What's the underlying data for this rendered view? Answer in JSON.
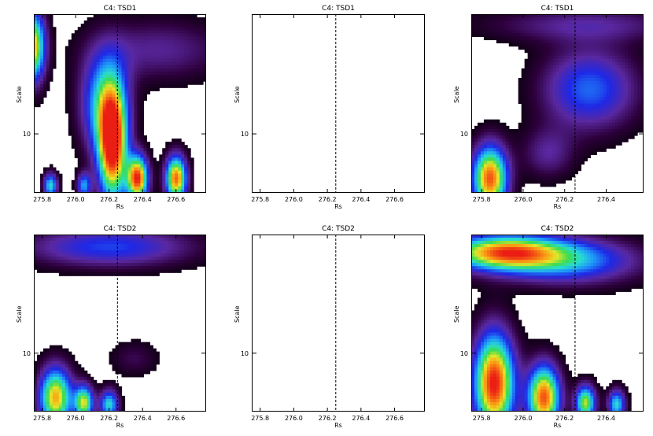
{
  "chart_data": [
    {
      "type": "heatmap",
      "title": "C4: TSD1",
      "xlabel": "Rs",
      "ylabel": "Scale",
      "xlim": [
        275.75,
        276.78
      ],
      "x_ticks": [
        275.8,
        276.0,
        276.2,
        276.4,
        276.6
      ],
      "x_tick_labels": [
        "275.8",
        "276.0",
        "276.2",
        "276.4",
        "276.6"
      ],
      "y_tick_labels": [
        "10"
      ],
      "marker_x": 276.25,
      "palette": "rainbow",
      "blobs": [
        {
          "x": 275.75,
          "y": 0.82,
          "sx": 0.05,
          "sy": 0.14,
          "a": 0.78
        },
        {
          "x": 276.22,
          "y": 0.26,
          "sx": 0.06,
          "sy": 0.22,
          "a": 0.98
        },
        {
          "x": 276.17,
          "y": 0.5,
          "sx": 0.1,
          "sy": 0.2,
          "a": 0.5
        },
        {
          "x": 276.37,
          "y": 0.08,
          "sx": 0.045,
          "sy": 0.09,
          "a": 0.96
        },
        {
          "x": 276.6,
          "y": 0.08,
          "sx": 0.045,
          "sy": 0.09,
          "a": 0.9
        },
        {
          "x": 276.5,
          "y": 0.8,
          "sx": 0.28,
          "sy": 0.12,
          "a": 0.2
        },
        {
          "x": 275.85,
          "y": 0.04,
          "sx": 0.03,
          "sy": 0.05,
          "a": 0.55
        },
        {
          "x": 276.05,
          "y": 0.04,
          "sx": 0.03,
          "sy": 0.05,
          "a": 0.45
        }
      ]
    },
    {
      "type": "heatmap",
      "title": "C4: TSD1",
      "xlabel": "Rs",
      "ylabel": "Scale",
      "xlim": [
        275.75,
        276.78
      ],
      "x_ticks": [
        275.8,
        276.0,
        276.2,
        276.4,
        276.6
      ],
      "x_tick_labels": [
        "275.8",
        "276.0",
        "276.2",
        "276.4",
        "276.6"
      ],
      "y_tick_labels": [
        "10"
      ],
      "marker_x": 276.25,
      "palette": "none",
      "blobs": []
    },
    {
      "type": "heatmap",
      "title": "C4: TSD1",
      "xlabel": "Rs",
      "ylabel": "Scale",
      "xlim": [
        275.75,
        276.58
      ],
      "x_ticks": [
        275.8,
        276.0,
        276.2,
        276.4,
        276.6
      ],
      "x_tick_labels": [
        "275.8",
        "276.0",
        "276.2",
        "276.4",
        "276.6"
      ],
      "y_tick_labels": [
        "10"
      ],
      "marker_x": 276.25,
      "palette": "rainbow",
      "blobs": [
        {
          "x": 276.32,
          "y": 0.58,
          "sx": 0.16,
          "sy": 0.16,
          "a": 0.4
        },
        {
          "x": 275.84,
          "y": 0.08,
          "sx": 0.06,
          "sy": 0.13,
          "a": 0.92
        },
        {
          "x": 276.3,
          "y": 0.94,
          "sx": 0.34,
          "sy": 0.07,
          "a": 0.2
        },
        {
          "x": 276.12,
          "y": 0.22,
          "sx": 0.09,
          "sy": 0.1,
          "a": 0.2
        }
      ]
    },
    {
      "type": "heatmap",
      "title": "C4: TSD2",
      "xlabel": "Rs",
      "ylabel": "Scale",
      "xlim": [
        275.75,
        276.78
      ],
      "x_ticks": [
        275.8,
        276.0,
        276.2,
        276.4,
        276.6
      ],
      "x_tick_labels": [
        "275.8",
        "276.0",
        "276.2",
        "276.4",
        "276.6"
      ],
      "y_tick_labels": [
        "10"
      ],
      "marker_x": 276.25,
      "palette": "rainbow",
      "blobs": [
        {
          "x": 276.2,
          "y": 0.93,
          "sx": 0.35,
          "sy": 0.08,
          "a": 0.36
        },
        {
          "x": 275.88,
          "y": 0.08,
          "sx": 0.07,
          "sy": 0.12,
          "a": 0.82
        },
        {
          "x": 276.05,
          "y": 0.05,
          "sx": 0.04,
          "sy": 0.07,
          "a": 0.72
        },
        {
          "x": 276.2,
          "y": 0.04,
          "sx": 0.04,
          "sy": 0.06,
          "a": 0.55
        },
        {
          "x": 276.35,
          "y": 0.3,
          "sx": 0.1,
          "sy": 0.07,
          "a": 0.12
        }
      ]
    },
    {
      "type": "heatmap",
      "title": "C4: TSD2",
      "xlabel": "Rs",
      "ylabel": "Scale",
      "xlim": [
        275.75,
        276.78
      ],
      "x_ticks": [
        275.8,
        276.0,
        276.2,
        276.4,
        276.6
      ],
      "x_tick_labels": [
        "275.8",
        "276.0",
        "276.2",
        "276.4",
        "276.6"
      ],
      "y_tick_labels": [
        "10"
      ],
      "marker_x": 276.25,
      "palette": "none",
      "blobs": []
    },
    {
      "type": "heatmap",
      "title": "C4: TSD2",
      "xlabel": "Rs",
      "ylabel": "Scale",
      "xlim": [
        275.75,
        276.58
      ],
      "x_ticks": [
        275.8,
        276.0,
        276.2,
        276.4,
        276.6
      ],
      "x_tick_labels": [
        "275.8",
        "276.0",
        "276.2",
        "276.4",
        "276.6"
      ],
      "y_tick_labels": [
        "10"
      ],
      "marker_x": 276.25,
      "palette": "rainbow",
      "blobs": [
        {
          "x": 275.9,
          "y": 0.9,
          "sx": 0.2,
          "sy": 0.07,
          "a": 0.82
        },
        {
          "x": 276.22,
          "y": 0.85,
          "sx": 0.24,
          "sy": 0.09,
          "a": 0.45
        },
        {
          "x": 275.86,
          "y": 0.16,
          "sx": 0.07,
          "sy": 0.2,
          "a": 1.0
        },
        {
          "x": 276.1,
          "y": 0.08,
          "sx": 0.055,
          "sy": 0.13,
          "a": 0.92
        },
        {
          "x": 276.3,
          "y": 0.05,
          "sx": 0.035,
          "sy": 0.07,
          "a": 0.72
        },
        {
          "x": 276.45,
          "y": 0.04,
          "sx": 0.03,
          "sy": 0.06,
          "a": 0.55
        }
      ]
    }
  ]
}
